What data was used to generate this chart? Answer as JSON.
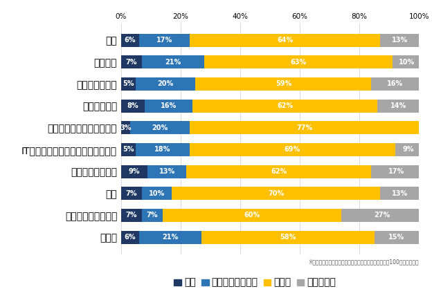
{
  "categories": [
    "全体",
    "メーカー",
    "流通・小売関連",
    "サービス関連",
    "広告・出版・マスコミ関連",
    "IT・情報処理・インターネット関連",
    "不動産・建設関連",
    "商社",
    "金融・コンサル関連",
    "その他"
  ],
  "iru": [
    6,
    7,
    5,
    8,
    3,
    5,
    9,
    7,
    7,
    6
  ],
  "iru_kano": [
    17,
    21,
    20,
    16,
    20,
    18,
    13,
    10,
    7,
    21
  ],
  "inai": [
    64,
    63,
    59,
    62,
    77,
    69,
    62,
    70,
    60,
    58
  ],
  "wakaranai": [
    13,
    10,
    16,
    14,
    0,
    9,
    17,
    13,
    27,
    15
  ],
  "color_iru": "#1f3864",
  "color_iru_kano": "#2e75b6",
  "color_inai": "#ffc000",
  "color_wakaranai": "#a6a6a6",
  "legend_labels": [
    "いる",
    "いる可能性がある",
    "いない",
    "わからない"
  ],
  "note": "※小数点以下を四捨五入しているため、必ずしも合計が100にならない。",
  "xlabel_ticks": [
    0,
    20,
    40,
    60,
    80,
    100
  ],
  "bar_height": 0.6,
  "figsize": [
    6.24,
    4.18
  ],
  "dpi": 100,
  "bg_color": "#ffffff",
  "label_fontsize": 7,
  "tick_fontsize": 7.5,
  "legend_fontsize": 7.5,
  "note_fontsize": 5.5
}
